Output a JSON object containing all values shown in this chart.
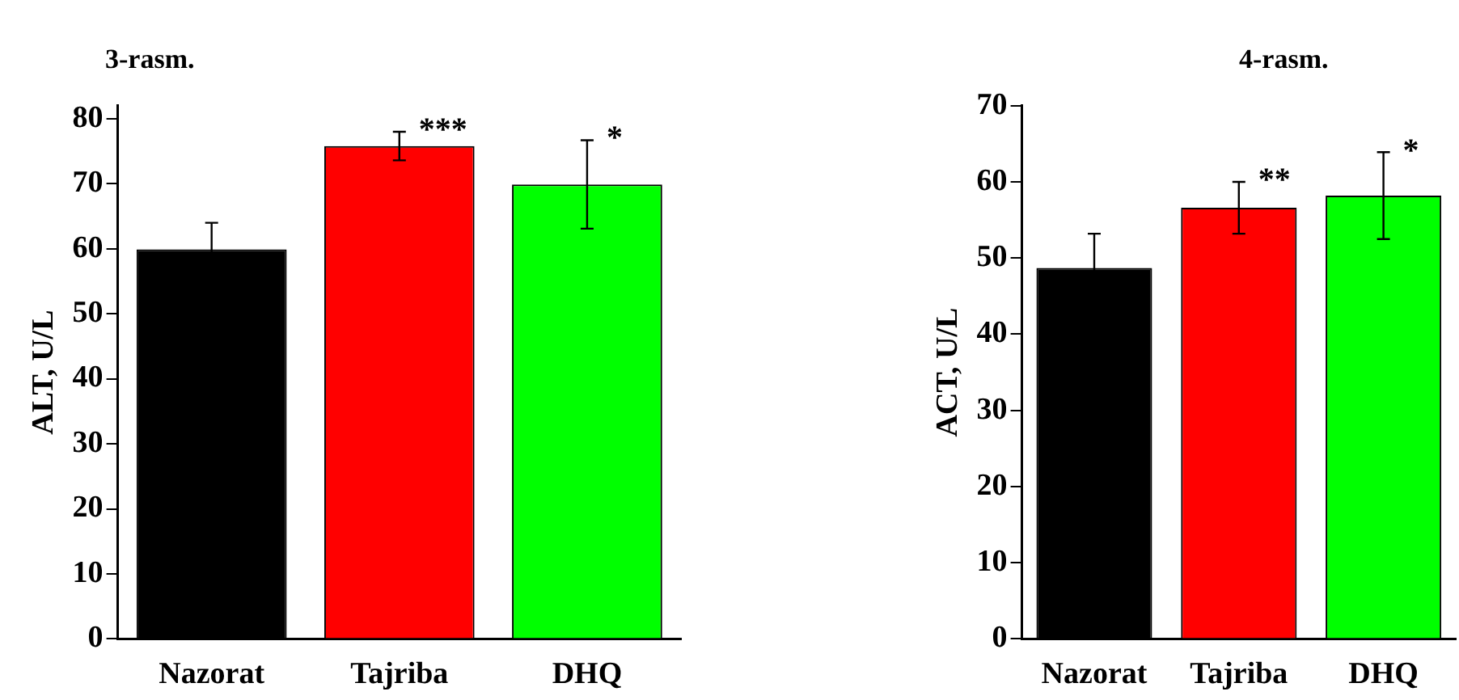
{
  "chart_data": [
    {
      "type": "bar",
      "title": "3-rasm.",
      "ylabel": "ALT, U/L",
      "categories": [
        "Nazorat",
        "Tajriba",
        "DHQ"
      ],
      "values": [
        59.9,
        75.8,
        69.9
      ],
      "colors": [
        "#000000",
        "#ff0000",
        "#00ff00"
      ],
      "errors": [
        4.1,
        2.2,
        6.8
      ],
      "ylim": [
        0,
        82
      ],
      "yticks": [
        0,
        10,
        20,
        30,
        40,
        50,
        60,
        70,
        80
      ],
      "grid": false,
      "annotations": [
        {
          "text": "***",
          "x": "Tajriba",
          "y": 78
        },
        {
          "text": "*",
          "x": "DHQ",
          "y": 76.8
        }
      ]
    },
    {
      "type": "bar",
      "title": "4-rasm.",
      "ylabel": "ACT, U/L",
      "categories": [
        "Nazorat",
        "Tajriba",
        "DHQ"
      ],
      "values": [
        48.7,
        56.6,
        58.2
      ],
      "colors": [
        "#000000",
        "#ff0000",
        "#00ff00"
      ],
      "errors": [
        4.5,
        3.4,
        5.7
      ],
      "ylim": [
        0,
        70
      ],
      "yticks": [
        0,
        10,
        20,
        30,
        40,
        50,
        60,
        70
      ],
      "grid": false,
      "annotations": [
        {
          "text": "**",
          "x": "Tajriba",
          "y": 60
        },
        {
          "text": "*",
          "x": "DHQ",
          "y": 63.9
        }
      ]
    }
  ]
}
